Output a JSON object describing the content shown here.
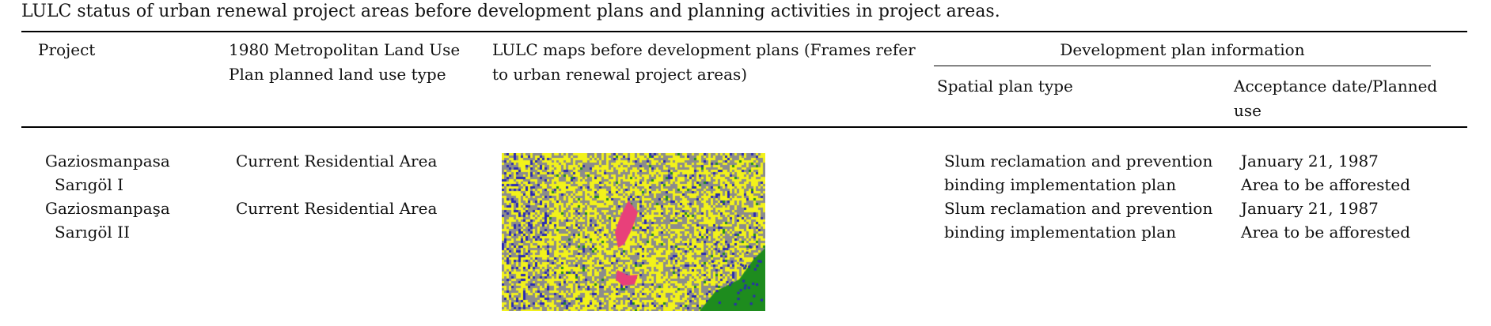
{
  "caption": "LULC status of urban renewal project areas before development plans and planning activities in project areas.",
  "headers": {
    "project": "Project",
    "landuse": "1980 Metropolitan Land Use Plan planned land use type",
    "maps": "LULC maps before development plans (Frames refer to urban renewal project areas)",
    "devplan": "Development plan information",
    "spatial": "Spatial plan type",
    "accept": "Acceptance date/Planned use"
  },
  "rows": [
    {
      "project_line1": "Gaziosmanpasa",
      "project_line2": "Sarıgöl I",
      "landuse": "Current Residential Area",
      "spatial_line1": "Slum reclamation and prevention",
      "spatial_line2": "binding implementation plan",
      "accept_line1": "January 21, 1987",
      "accept_line2": "Area to be afforested"
    },
    {
      "project_line1": "Gaziosmanpaşa",
      "project_line2": "Sarıgöl II",
      "landuse": "Current Residential Area",
      "spatial_line1": "Slum reclamation and prevention",
      "spatial_line2": "binding implementation plan",
      "accept_line1": "January 21, 1987",
      "accept_line2": "Area to be afforested"
    }
  ],
  "map_colors": {
    "yellow": "#f2f21a",
    "gray": "#8c8c8c",
    "blue": "#2a2ab4",
    "green": "#1e8c1e",
    "pink": "#e8407a"
  }
}
